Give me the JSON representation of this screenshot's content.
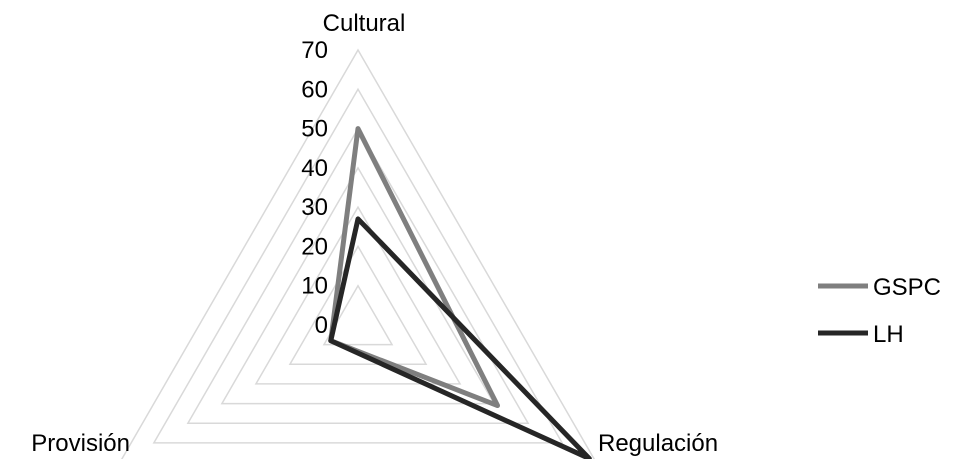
{
  "chart_data": {
    "type": "radar",
    "axes": [
      "Cultural",
      "Regulación",
      "Provisión"
    ],
    "ticks": [
      "0",
      "10",
      "20",
      "30",
      "40",
      "50",
      "60",
      "70"
    ],
    "rlim": [
      0,
      70
    ],
    "grid": true,
    "legend_position": "right",
    "series": [
      {
        "name": "GSPC",
        "values": [
          50,
          41,
          8
        ],
        "color": "#7f7f7f"
      },
      {
        "name": "LH",
        "values": [
          27,
          68,
          8
        ],
        "color": "#262626"
      }
    ]
  }
}
